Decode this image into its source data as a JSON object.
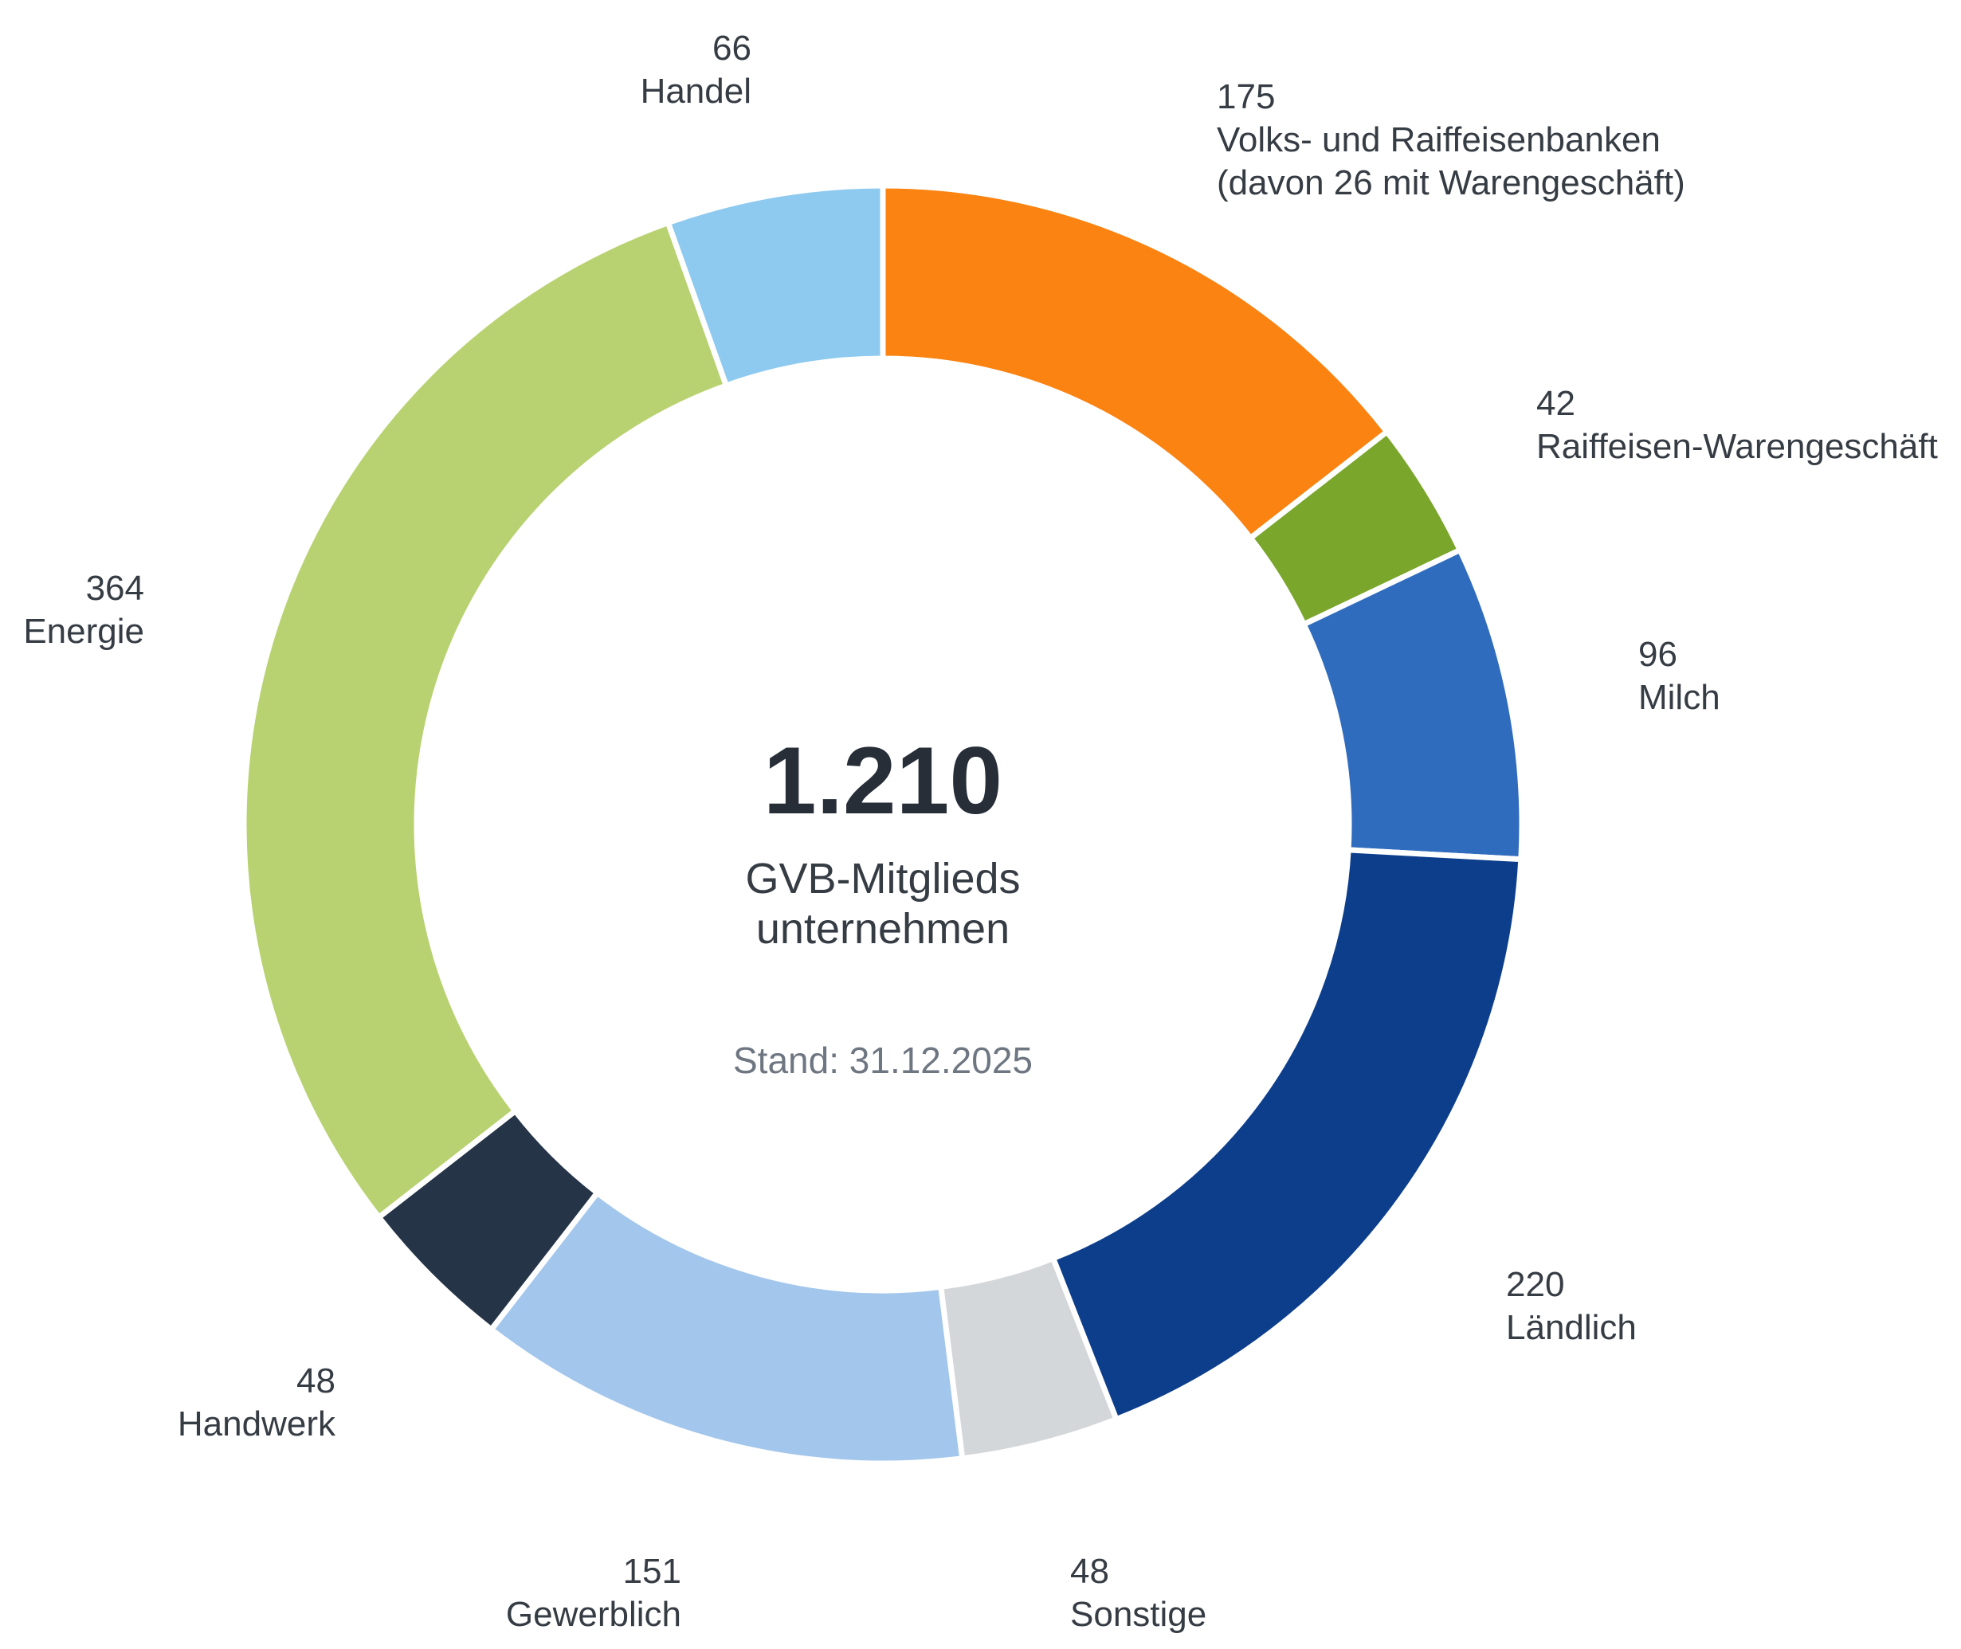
{
  "chart_data": {
    "type": "pie",
    "variant": "donut",
    "title": "GVB-Mitgliedsunternehmen",
    "direction": "clockwise",
    "start_angle_deg": 0,
    "total_value": 1210,
    "center": {
      "total_display": "1.210",
      "label_line1": "GVB-Mitglieds",
      "label_line2": "unternehmen",
      "stand": "Stand: 31.12.2025"
    },
    "background": "#ffffff",
    "text_colors": {
      "labels": "#363c44",
      "total": "#272e38",
      "stand": "#6e7681"
    },
    "segment_gap_color": "#ffffff",
    "segments": [
      {
        "id": "volks-und-raiffeisenbanken",
        "value": 175,
        "value_display": "175",
        "label_lines": [
          "Volks- und Raiffeisenbanken",
          "(davon 26 mit Warengeschäft)"
        ],
        "color": "#fb8312"
      },
      {
        "id": "raiffeisen-warengeschaeft",
        "value": 42,
        "value_display": "42",
        "label_lines": [
          "Raiffeisen-Warengeschäft"
        ],
        "color": "#7aa62b"
      },
      {
        "id": "milch",
        "value": 96,
        "value_display": "96",
        "label_lines": [
          "Milch"
        ],
        "color": "#2f6cbe"
      },
      {
        "id": "laendlich",
        "value": 220,
        "value_display": "220",
        "label_lines": [
          "Ländlich"
        ],
        "color": "#0d3e8c"
      },
      {
        "id": "sonstige",
        "value": 48,
        "value_display": "48",
        "label_lines": [
          "Sonstige"
        ],
        "color": "#d4d7da"
      },
      {
        "id": "gewerblich",
        "value": 151,
        "value_display": "151",
        "label_lines": [
          "Gewerblich"
        ],
        "color": "#a3c6ec"
      },
      {
        "id": "handwerk",
        "value": 48,
        "value_display": "48",
        "label_lines": [
          "Handwerk"
        ],
        "color": "#253447"
      },
      {
        "id": "energie",
        "value": 364,
        "value_display": "364",
        "label_lines": [
          "Energie"
        ],
        "color": "#b9d271"
      },
      {
        "id": "handel",
        "value": 66,
        "value_display": "66",
        "label_lines": [
          "Handel"
        ],
        "color": "#8ecaef"
      }
    ]
  }
}
